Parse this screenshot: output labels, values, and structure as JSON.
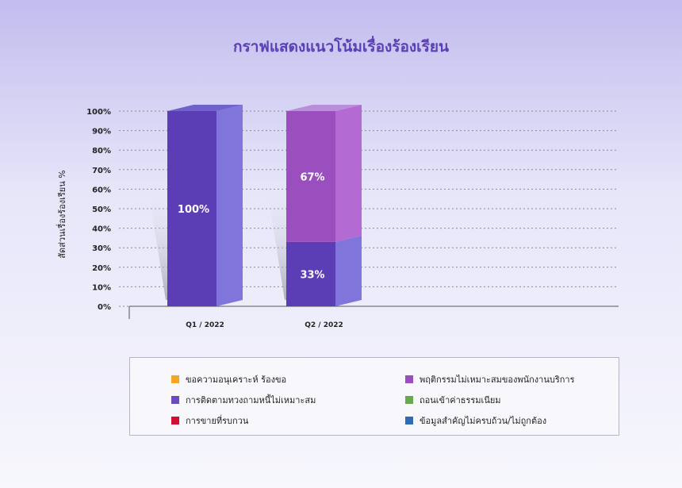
{
  "chart_data": {
    "type": "bar",
    "stacked": true,
    "title": "กราฟแสดงแนวโน้มเรื่องร้องเรียน",
    "ylabel": "สัดส่วนเรื่องร้องเรียน %",
    "xlabel": "",
    "ylim": [
      0,
      100
    ],
    "yticks": [
      "100%",
      "90%",
      "80%",
      "70%",
      "60%",
      "50%",
      "40%",
      "30%",
      "20%",
      "10%",
      "0%"
    ],
    "ytick_values": [
      100,
      90,
      80,
      70,
      60,
      50,
      40,
      30,
      20,
      10,
      0
    ],
    "grid": true,
    "legend_position": "bottom",
    "categories": [
      "Q1 / 2022",
      "Q2 / 2022"
    ],
    "series": [
      {
        "name": "การติดตามทวงถามหนี้ไม่เหมาะสม",
        "color": "#5b3db5",
        "side_color": "#7f75db",
        "top_color": "#6e62cc",
        "values": [
          100,
          33
        ],
        "labels": [
          "100%",
          "33%"
        ]
      },
      {
        "name": "พฤติกรรมไม่เหมาะสมของพนักงานบริการ",
        "color": "#9b4fbf",
        "side_color": "#b36ad2",
        "top_color": "#b98fd9",
        "values": [
          0,
          67
        ],
        "labels": [
          "",
          "67%"
        ]
      }
    ],
    "legend": [
      {
        "name": "ขอความอนุเคราะห์ ร้องขอ",
        "color": "#f5a623"
      },
      {
        "name": "การติดตามทวงถามหนี้ไม่เหมาะสม",
        "color": "#6a4cc0"
      },
      {
        "name": "การขายที่รบกวน",
        "color": "#d0102e"
      },
      {
        "name": "พฤติกรรมไม่เหมาะสมของพนักงานบริการ",
        "color": "#9b4fbf"
      },
      {
        "name": "ถอนเข้าค่าธรรมเนียม",
        "color": "#6aa84f"
      },
      {
        "name": "ข้อมูลสำคัญไม่ครบถ้วน/ไม่ถูกต้อง",
        "color": "#2e6db4"
      }
    ]
  }
}
